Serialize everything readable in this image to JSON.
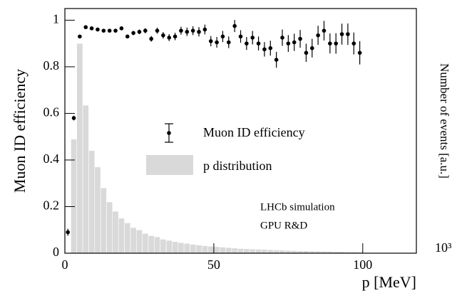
{
  "chart_data": {
    "type": "scatter",
    "xlabel": "p [MeV]",
    "ylabel": "Muon ID efficiency",
    "y2label": "Number of events [a.u.]",
    "y2_multiplier": "10³",
    "annotations": [
      "LHCb simulation",
      "GPU R&D"
    ],
    "xlim": [
      0,
      118
    ],
    "ylim": [
      0,
      1.05
    ],
    "y2lim": [
      0,
      1.05
    ],
    "xticks": [
      0,
      50,
      100
    ],
    "yticks": [
      0,
      0.2,
      0.4,
      0.6,
      0.8,
      1
    ],
    "series": [
      {
        "name": "Muon ID efficiency",
        "color": "#000000",
        "x": [
          1,
          3,
          5,
          7,
          9,
          11,
          13,
          15,
          17,
          19,
          21,
          23,
          25,
          27,
          29,
          31,
          33,
          35,
          37,
          39,
          41,
          43,
          45,
          47,
          49,
          51,
          53,
          55,
          57,
          59,
          61,
          63,
          65,
          67,
          69,
          71,
          73,
          75,
          77,
          79,
          81,
          83,
          85,
          87,
          89,
          91,
          93,
          95,
          97,
          99
        ],
        "values": [
          0.09,
          0.58,
          0.93,
          0.97,
          0.965,
          0.96,
          0.955,
          0.955,
          0.955,
          0.965,
          0.93,
          0.945,
          0.95,
          0.955,
          0.92,
          0.955,
          0.935,
          0.925,
          0.93,
          0.955,
          0.95,
          0.955,
          0.95,
          0.96,
          0.91,
          0.905,
          0.93,
          0.905,
          0.975,
          0.93,
          0.9,
          0.925,
          0.9,
          0.875,
          0.88,
          0.83,
          0.925,
          0.9,
          0.905,
          0.92,
          0.86,
          0.88,
          0.935,
          0.955,
          0.9,
          0.9,
          0.94,
          0.94,
          0.9,
          0.86
        ],
        "errors": [
          0.015,
          0.01,
          0.006,
          0.006,
          0.006,
          0.006,
          0.006,
          0.007,
          0.007,
          0.008,
          0.008,
          0.009,
          0.01,
          0.011,
          0.012,
          0.013,
          0.014,
          0.015,
          0.016,
          0.017,
          0.018,
          0.019,
          0.02,
          0.021,
          0.022,
          0.023,
          0.024,
          0.025,
          0.026,
          0.027,
          0.028,
          0.029,
          0.03,
          0.031,
          0.032,
          0.034,
          0.035,
          0.036,
          0.037,
          0.038,
          0.039,
          0.04,
          0.041,
          0.042,
          0.043,
          0.044,
          0.045,
          0.046,
          0.047,
          0.05
        ]
      },
      {
        "name": "p distribution",
        "color": "#d9d9d9",
        "axis": "y2",
        "type": "histogram",
        "bins": [
          2,
          4,
          6,
          8,
          10,
          12,
          14,
          16,
          18,
          20,
          22,
          24,
          26,
          28,
          30,
          32,
          34,
          36,
          38,
          40,
          42,
          44,
          46,
          48,
          50,
          52,
          54,
          56,
          58,
          60,
          62,
          64,
          66,
          68,
          70,
          72,
          74,
          76,
          78,
          80,
          82,
          84,
          86,
          88,
          90,
          92,
          94,
          96,
          98,
          100
        ],
        "values": [
          0.49,
          0.9,
          0.635,
          0.44,
          0.37,
          0.28,
          0.22,
          0.18,
          0.15,
          0.13,
          0.11,
          0.1,
          0.085,
          0.075,
          0.07,
          0.06,
          0.055,
          0.05,
          0.045,
          0.042,
          0.038,
          0.035,
          0.032,
          0.03,
          0.028,
          0.026,
          0.024,
          0.022,
          0.02,
          0.019,
          0.018,
          0.017,
          0.016,
          0.015,
          0.014,
          0.013,
          0.012,
          0.011,
          0.01,
          0.01,
          0.009,
          0.009,
          0.008,
          0.008,
          0.007,
          0.007,
          0.006,
          0.006,
          0.005
        ]
      }
    ]
  }
}
